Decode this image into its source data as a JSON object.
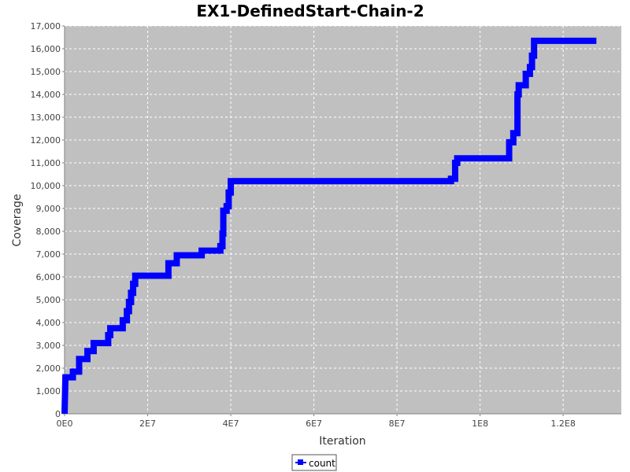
{
  "chart_data": {
    "type": "line",
    "title": "EX1-DefinedStart-Chain-2",
    "xlabel": "Iteration",
    "ylabel": "Coverage",
    "xlim": [
      0,
      134000000
    ],
    "ylim": [
      0,
      17000
    ],
    "grid": true,
    "legend_position": "bottom-center",
    "colors": {
      "series": "#0000ff",
      "plot_background": "#c0c0c0",
      "grid": "#ffffff"
    },
    "x_ticks": [
      {
        "value": 0,
        "label": "0E0"
      },
      {
        "value": 20000000,
        "label": "2E7"
      },
      {
        "value": 40000000,
        "label": "4E7"
      },
      {
        "value": 60000000,
        "label": "6E7"
      },
      {
        "value": 80000000,
        "label": "8E7"
      },
      {
        "value": 100000000,
        "label": "1E8"
      },
      {
        "value": 120000000,
        "label": "1.2E8"
      }
    ],
    "y_ticks": [
      {
        "value": 0,
        "label": "0"
      },
      {
        "value": 1000,
        "label": "1,000"
      },
      {
        "value": 2000,
        "label": "2,000"
      },
      {
        "value": 3000,
        "label": "3,000"
      },
      {
        "value": 4000,
        "label": "4,000"
      },
      {
        "value": 5000,
        "label": "5,000"
      },
      {
        "value": 6000,
        "label": "6,000"
      },
      {
        "value": 7000,
        "label": "7,000"
      },
      {
        "value": 8000,
        "label": "8,000"
      },
      {
        "value": 9000,
        "label": "9,000"
      },
      {
        "value": 10000,
        "label": "10,000"
      },
      {
        "value": 11000,
        "label": "11,000"
      },
      {
        "value": 12000,
        "label": "12,000"
      },
      {
        "value": 13000,
        "label": "13,000"
      },
      {
        "value": 14000,
        "label": "14,000"
      },
      {
        "value": 15000,
        "label": "15,000"
      },
      {
        "value": 16000,
        "label": "16,000"
      },
      {
        "value": 17000,
        "label": "17,000"
      }
    ],
    "series": [
      {
        "name": "count",
        "points": [
          [
            0,
            0
          ],
          [
            200000,
            1600
          ],
          [
            2000000,
            1600
          ],
          [
            2000000,
            1850
          ],
          [
            3500000,
            1850
          ],
          [
            3500000,
            2400
          ],
          [
            5500000,
            2400
          ],
          [
            5500000,
            2750
          ],
          [
            7000000,
            2750
          ],
          [
            7000000,
            3100
          ],
          [
            10500000,
            3100
          ],
          [
            10500000,
            3450
          ],
          [
            11000000,
            3450
          ],
          [
            11000000,
            3750
          ],
          [
            14000000,
            3750
          ],
          [
            14000000,
            4100
          ],
          [
            15000000,
            4100
          ],
          [
            15000000,
            4500
          ],
          [
            15500000,
            4500
          ],
          [
            15500000,
            4900
          ],
          [
            16000000,
            4900
          ],
          [
            16000000,
            5300
          ],
          [
            16500000,
            5300
          ],
          [
            16500000,
            5700
          ],
          [
            17000000,
            5700
          ],
          [
            17000000,
            6050
          ],
          [
            25000000,
            6050
          ],
          [
            25000000,
            6600
          ],
          [
            27000000,
            6600
          ],
          [
            27000000,
            6950
          ],
          [
            33000000,
            6950
          ],
          [
            33000000,
            7150
          ],
          [
            37500000,
            7150
          ],
          [
            37500000,
            7350
          ],
          [
            38000000,
            7350
          ],
          [
            38000000,
            7900
          ],
          [
            38200000,
            7900
          ],
          [
            38200000,
            8900
          ],
          [
            39000000,
            8900
          ],
          [
            39000000,
            9100
          ],
          [
            39500000,
            9100
          ],
          [
            39500000,
            9700
          ],
          [
            40000000,
            9700
          ],
          [
            40000000,
            10200
          ],
          [
            93000000,
            10200
          ],
          [
            93000000,
            10300
          ],
          [
            94000000,
            10300
          ],
          [
            94000000,
            11000
          ],
          [
            94500000,
            11000
          ],
          [
            94500000,
            11200
          ],
          [
            107000000,
            11200
          ],
          [
            107000000,
            11900
          ],
          [
            108000000,
            11900
          ],
          [
            108000000,
            12300
          ],
          [
            109000000,
            12300
          ],
          [
            109000000,
            14000
          ],
          [
            109300000,
            14000
          ],
          [
            109300000,
            14400
          ],
          [
            111000000,
            14400
          ],
          [
            111000000,
            14900
          ],
          [
            112000000,
            14900
          ],
          [
            112000000,
            15200
          ],
          [
            112500000,
            15200
          ],
          [
            112500000,
            15700
          ],
          [
            113000000,
            15700
          ],
          [
            113000000,
            16350
          ],
          [
            128000000,
            16350
          ]
        ]
      }
    ]
  }
}
